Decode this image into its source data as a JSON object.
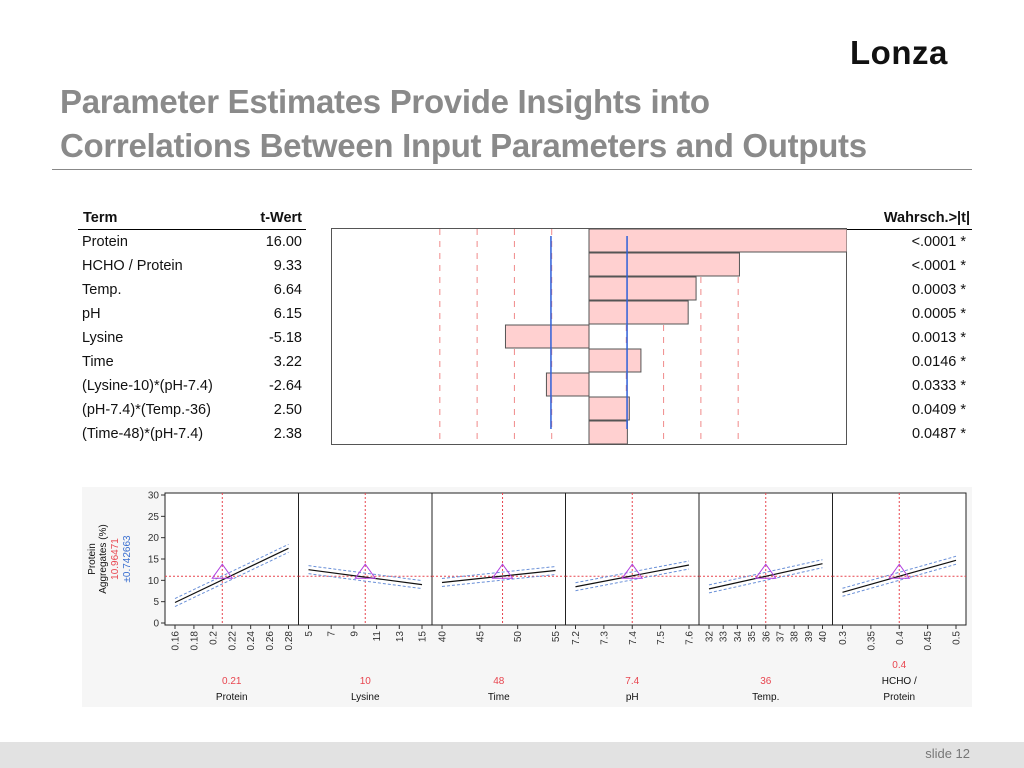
{
  "brand": "Lonza",
  "title_line1": "Parameter Estimates Provide Insights into",
  "title_line2": "Correlations Between Input Parameters and Outputs",
  "table": {
    "col_term": "Term",
    "col_t": "t-Wert",
    "col_p": "Wahrsch.>|t|",
    "rows": [
      {
        "term": "Protein",
        "t": "16.00",
        "tval": 16.0,
        "p": "<.0001 *"
      },
      {
        "term": "HCHO / Protein",
        "t": "9.33",
        "tval": 9.33,
        "p": "<.0001 *"
      },
      {
        "term": "Temp.",
        "t": "6.64",
        "tval": 6.64,
        "p": "0.0003 *"
      },
      {
        "term": "pH",
        "t": "6.15",
        "tval": 6.15,
        "p": "0.0005 *"
      },
      {
        "term": "Lysine",
        "t": "-5.18",
        "tval": -5.18,
        "p": "0.0013 *"
      },
      {
        "term": "Time",
        "t": "3.22",
        "tval": 3.22,
        "p": "0.0146 *"
      },
      {
        "term": "(Lysine-10)*(pH-7.4)",
        "t": "-2.64",
        "tval": -2.64,
        "p": "0.0333 *"
      },
      {
        "term": "(pH-7.4)*(Temp.-36)",
        "t": "2.50",
        "tval": 2.5,
        "p": "0.0409 *"
      },
      {
        "term": "(Time-48)*(pH-7.4)",
        "t": "2.38",
        "tval": 2.38,
        "p": "0.0487 *"
      }
    ]
  },
  "chart_data": [
    {
      "type": "bar",
      "categories": [
        "Protein",
        "HCHO / Protein",
        "Temp.",
        "pH",
        "Lysine",
        "Time",
        "(Lysine-10)*(pH-7.4)",
        "(pH-7.4)*(Temp.-36)",
        "(Time-48)*(pH-7.4)"
      ],
      "values": [
        16.0,
        9.33,
        6.64,
        6.15,
        -5.18,
        3.22,
        -2.64,
        2.5,
        2.38
      ],
      "xlim": [
        -16,
        16
      ],
      "reference_lines": [
        -2.36,
        2.36
      ],
      "bar_color": "#ffd0d0"
    },
    {
      "type": "line",
      "ylabel_line1": "Protein",
      "ylabel_line2": "Aggregates (%)",
      "y_current": "10.96471",
      "y_ci": "±0.742663",
      "ylim": [
        0,
        30
      ],
      "yticks": [
        "0",
        "5",
        "10",
        "15",
        "20",
        "25",
        "30"
      ],
      "current_color": "#e8454f",
      "ci_color": "#3a6fd0",
      "panels": [
        {
          "name": "Protein",
          "name2": "",
          "current": "0.21",
          "xlim": [
            0.16,
            0.28
          ],
          "xticks": [
            "0.16",
            "0.18",
            "0.2",
            "0.22",
            "0.24",
            "0.26",
            "0.28"
          ],
          "cur": 0.21,
          "y0": 4.8,
          "y1": 17.5
        },
        {
          "name": "Lysine",
          "name2": "",
          "current": "10",
          "xlim": [
            5,
            15
          ],
          "xticks": [
            "5",
            "7",
            "9",
            "11",
            "13",
            "15"
          ],
          "cur": 10,
          "y0": 12.5,
          "y1": 9.0
        },
        {
          "name": "Time",
          "name2": "",
          "current": "48",
          "xlim": [
            40,
            55
          ],
          "xticks": [
            "40",
            "45",
            "50",
            "55"
          ],
          "cur": 48,
          "y0": 9.5,
          "y1": 12.3
        },
        {
          "name": "pH",
          "name2": "",
          "current": "7.4",
          "xlim": [
            7.2,
            7.6
          ],
          "xticks": [
            "7.2",
            "7.3",
            "7.4",
            "7.5",
            "7.6"
          ],
          "cur": 7.4,
          "y0": 8.5,
          "y1": 13.6
        },
        {
          "name": "Temp.",
          "name2": "",
          "current": "36",
          "xlim": [
            32,
            40
          ],
          "xticks": [
            "32",
            "33",
            "34",
            "35",
            "36",
            "37",
            "38",
            "39",
            "40"
          ],
          "cur": 36,
          "y0": 8.0,
          "y1": 13.9
        },
        {
          "name": "HCHO /",
          "name2": "Protein",
          "current": "0.4",
          "xlim": [
            0.3,
            0.5
          ],
          "xticks": [
            "0.3",
            "0.35",
            "0.4",
            "0.45",
            "0.5"
          ],
          "cur": 0.4,
          "y0": 7.2,
          "y1": 14.7
        }
      ]
    }
  ],
  "footer": {
    "slide": "slide 12"
  }
}
